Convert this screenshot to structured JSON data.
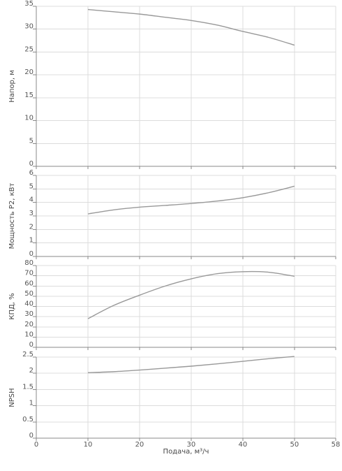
{
  "chart_data": [
    {
      "type": "line",
      "ylabel": "Напор, м",
      "xlim": [
        0,
        58
      ],
      "ylim": [
        0,
        35
      ],
      "yticks": [
        0,
        5,
        10,
        15,
        20,
        25,
        30,
        35
      ],
      "grid": true,
      "series": [
        {
          "x": [
            10,
            15,
            20,
            25,
            30,
            35,
            40,
            45,
            50
          ],
          "y": [
            34.3,
            33.8,
            33.3,
            32.6,
            31.9,
            30.9,
            29.5,
            28.2,
            26.5
          ]
        }
      ]
    },
    {
      "type": "line",
      "ylabel": "Мощность P2, кВт",
      "xlim": [
        0,
        58
      ],
      "ylim": [
        0,
        6
      ],
      "yticks": [
        0,
        1,
        2,
        3,
        4,
        5,
        6
      ],
      "grid": true,
      "series": [
        {
          "x": [
            10,
            15,
            20,
            25,
            30,
            35,
            40,
            45,
            50
          ],
          "y": [
            3.15,
            3.45,
            3.65,
            3.78,
            3.92,
            4.1,
            4.35,
            4.72,
            5.2
          ]
        }
      ]
    },
    {
      "type": "line",
      "ylabel": "КПД, %",
      "xlim": [
        0,
        58
      ],
      "ylim": [
        0,
        80
      ],
      "yticks": [
        0,
        10,
        20,
        30,
        40,
        50,
        60,
        70,
        80
      ],
      "grid": true,
      "series": [
        {
          "x": [
            10,
            15,
            20,
            25,
            30,
            35,
            40,
            45,
            50
          ],
          "y": [
            28,
            41,
            51,
            60,
            67,
            72,
            74,
            73.5,
            69.5
          ]
        }
      ]
    },
    {
      "type": "line",
      "ylabel": "NPSH",
      "xlabel": "Подача, м³/ч",
      "xlim": [
        0,
        58
      ],
      "ylim": [
        0,
        2.5
      ],
      "yticks": [
        0,
        0.5,
        1,
        1.5,
        2,
        2.5
      ],
      "xticks": [
        0,
        10,
        20,
        30,
        40,
        50,
        58
      ],
      "grid": true,
      "series": [
        {
          "x": [
            10,
            15,
            20,
            25,
            30,
            35,
            40,
            45,
            50
          ],
          "y": [
            2.02,
            2.05,
            2.1,
            2.16,
            2.22,
            2.29,
            2.37,
            2.45,
            2.52
          ]
        }
      ]
    }
  ],
  "colors": {
    "series": "#999999",
    "grid": "#dcdcdc",
    "axis": "#888888",
    "text": "#555555"
  }
}
